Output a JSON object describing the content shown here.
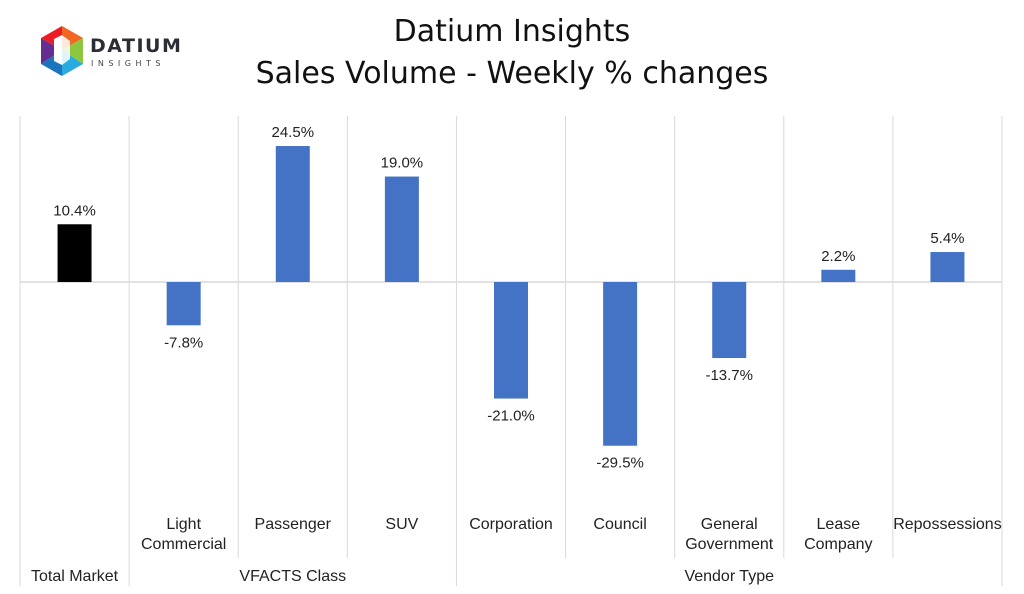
{
  "logo": {
    "word": "DATIUM",
    "sub": "INSIGHTS"
  },
  "header": {
    "title": "Datium Insights",
    "subtitle": "Sales Volume - Weekly % changes"
  },
  "chart_data": {
    "type": "bar",
    "title": "Datium Insights",
    "subtitle": "Sales Volume - Weekly % changes",
    "categories": [
      "",
      "Light Commercial",
      "Passenger",
      "SUV",
      "Corporation",
      "Council",
      "General Government",
      "Lease Company",
      "Repossessions"
    ],
    "values": [
      10.4,
      -7.8,
      24.5,
      19.0,
      -21.0,
      -29.5,
      -13.7,
      2.2,
      5.4
    ],
    "data_labels": [
      "10.4%",
      "-7.8%",
      "24.5%",
      "19.0%",
      "-21.0%",
      "-29.5%",
      "-13.7%",
      "2.2%",
      "5.4%"
    ],
    "groups": [
      {
        "label": "Total Market",
        "count": 1
      },
      {
        "label": "VFACTS Class",
        "count": 3
      },
      {
        "label": "Vendor Type",
        "count": 5
      }
    ],
    "bar_colors": [
      "#000000",
      "#4472c4",
      "#4472c4",
      "#4472c4",
      "#4472c4",
      "#4472c4",
      "#4472c4",
      "#4472c4",
      "#4472c4"
    ],
    "ylim": [
      -40,
      30
    ],
    "xlabel": "",
    "ylabel": "",
    "grid": false,
    "legend": "none"
  }
}
